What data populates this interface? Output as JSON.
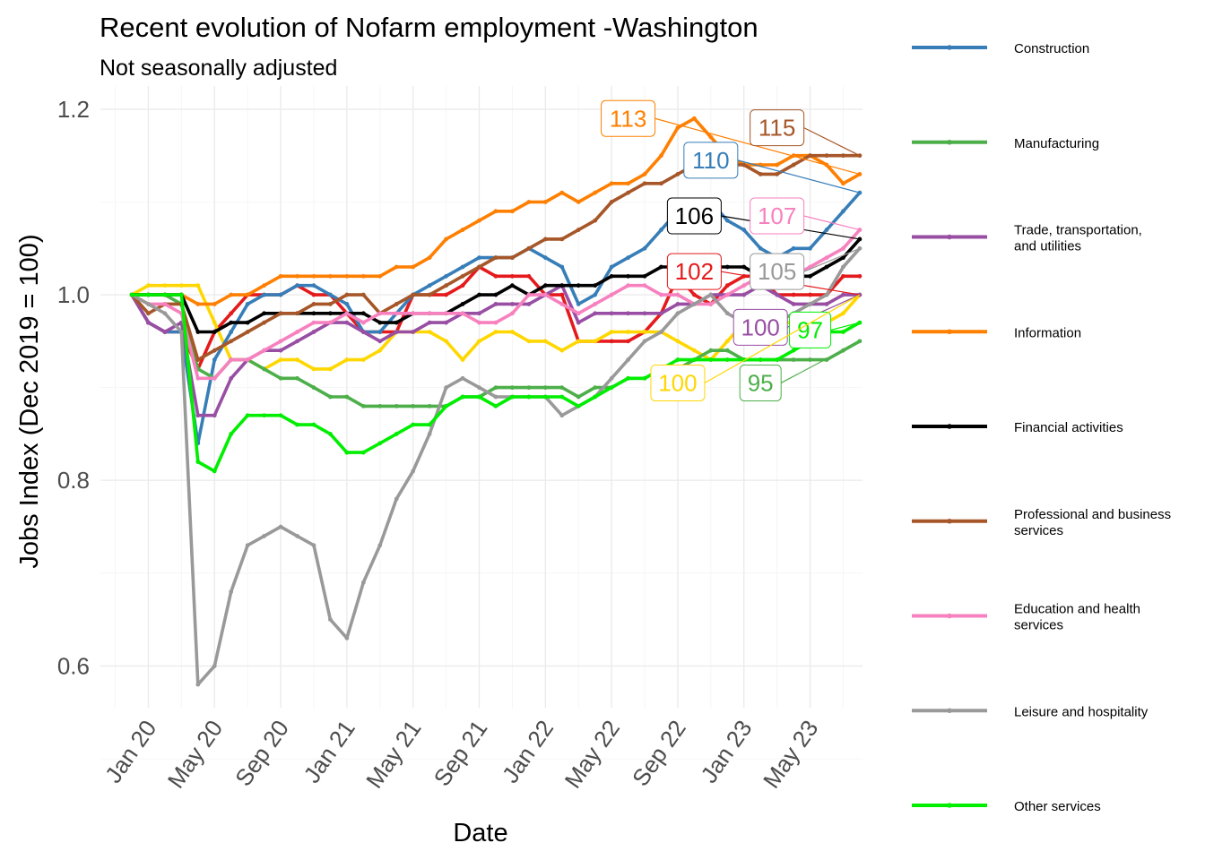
{
  "chart_data": {
    "type": "line",
    "title": "Recent evolution of Nofarm employment -Washington",
    "subtitle": "Not seasonally adjusted",
    "xlabel": "Date",
    "ylabel": "Jobs Index (Dec 2019 = 100)",
    "ylim": [
      0.555,
      1.225
    ],
    "yticks": [
      0.6,
      0.8,
      1.0,
      1.2
    ],
    "ytick_labels": [
      "0.6",
      "0.8",
      "1.0",
      "1.2"
    ],
    "xticks": [
      "2020-01",
      "2020-05",
      "2020-09",
      "2021-01",
      "2021-05",
      "2021-09",
      "2022-01",
      "2022-05",
      "2022-09",
      "2023-01",
      "2023-05"
    ],
    "xtick_labels": [
      "Jan 20",
      "May 20",
      "Sep 20",
      "Jan 21",
      "May 21",
      "Sep 21",
      "Jan 22",
      "May 22",
      "Sep 22",
      "Jan 23",
      "May 23"
    ],
    "x_start": "2019-12",
    "x_end": "2023-06",
    "grid": true,
    "legend_position": "right",
    "series": [
      {
        "name": "Construction",
        "color": "#377eb8",
        "values": [
          1.0,
          0.97,
          0.96,
          0.96,
          0.84,
          0.93,
          0.96,
          0.99,
          1.0,
          1.0,
          1.01,
          1.01,
          1.0,
          0.99,
          0.96,
          0.96,
          0.98,
          1.0,
          1.01,
          1.02,
          1.03,
          1.04,
          1.04,
          1.04,
          1.05,
          1.04,
          1.03,
          0.99,
          1.0,
          1.03,
          1.04,
          1.05,
          1.07,
          1.09,
          1.1,
          1.1,
          1.08,
          1.07,
          1.05,
          1.04,
          1.05,
          1.05,
          1.07,
          1.09,
          1.11
        ],
        "label": "110"
      },
      {
        "name": "Manufacturing",
        "color": "#4daf4a",
        "values": [
          1.0,
          1.0,
          1.0,
          0.99,
          0.92,
          0.91,
          0.93,
          0.93,
          0.92,
          0.91,
          0.91,
          0.9,
          0.89,
          0.89,
          0.88,
          0.88,
          0.88,
          0.88,
          0.88,
          0.88,
          0.89,
          0.89,
          0.9,
          0.9,
          0.9,
          0.9,
          0.9,
          0.89,
          0.9,
          0.9,
          0.91,
          0.91,
          0.92,
          0.92,
          0.93,
          0.94,
          0.94,
          0.93,
          0.93,
          0.93,
          0.93,
          0.93,
          0.93,
          0.94,
          0.95
        ],
        "label": "95"
      },
      {
        "name": "Trade, transportation,\nand utilities",
        "color": "#984ea3",
        "values": [
          1.0,
          0.97,
          0.96,
          0.97,
          0.87,
          0.87,
          0.91,
          0.93,
          0.94,
          0.94,
          0.95,
          0.96,
          0.97,
          0.97,
          0.96,
          0.95,
          0.96,
          0.96,
          0.97,
          0.97,
          0.98,
          0.98,
          0.99,
          0.99,
          0.99,
          1.0,
          1.01,
          0.97,
          0.98,
          0.98,
          0.98,
          0.98,
          0.98,
          0.99,
          0.99,
          1.0,
          1.0,
          1.0,
          1.01,
          1.0,
          0.99,
          0.99,
          0.99,
          1.0,
          1.0
        ],
        "label": "100"
      },
      {
        "name": "Information",
        "color": "#ff7f00",
        "values": [
          1.0,
          1.0,
          1.0,
          1.0,
          0.99,
          0.99,
          1.0,
          1.0,
          1.01,
          1.02,
          1.02,
          1.02,
          1.02,
          1.02,
          1.02,
          1.02,
          1.03,
          1.03,
          1.04,
          1.06,
          1.07,
          1.08,
          1.09,
          1.09,
          1.1,
          1.1,
          1.11,
          1.1,
          1.11,
          1.12,
          1.12,
          1.13,
          1.15,
          1.18,
          1.19,
          1.17,
          1.15,
          1.14,
          1.14,
          1.14,
          1.15,
          1.15,
          1.14,
          1.12,
          1.13
        ],
        "label": "113"
      },
      {
        "name": "Financial activities",
        "color": "#000000",
        "values": [
          1.0,
          1.0,
          1.0,
          1.0,
          0.96,
          0.96,
          0.97,
          0.97,
          0.98,
          0.98,
          0.98,
          0.98,
          0.98,
          0.98,
          0.98,
          0.97,
          0.97,
          0.98,
          0.98,
          0.98,
          0.99,
          1.0,
          1.0,
          1.01,
          1.0,
          1.01,
          1.01,
          1.01,
          1.01,
          1.02,
          1.02,
          1.02,
          1.03,
          1.03,
          1.03,
          1.03,
          1.03,
          1.03,
          1.02,
          1.02,
          1.02,
          1.02,
          1.03,
          1.04,
          1.06
        ],
        "label": "106"
      },
      {
        "name": "Professional and business\nservices",
        "color": "#a65628",
        "values": [
          1.0,
          0.98,
          0.99,
          0.99,
          0.93,
          0.94,
          0.95,
          0.96,
          0.97,
          0.98,
          0.98,
          0.99,
          0.99,
          1.0,
          1.0,
          0.98,
          0.99,
          1.0,
          1.0,
          1.01,
          1.02,
          1.03,
          1.04,
          1.04,
          1.05,
          1.06,
          1.06,
          1.07,
          1.08,
          1.1,
          1.11,
          1.12,
          1.12,
          1.13,
          1.14,
          1.15,
          1.14,
          1.14,
          1.13,
          1.13,
          1.14,
          1.15,
          1.15,
          1.15,
          1.15
        ],
        "label": "115"
      },
      {
        "name": "Education and health\nservices",
        "color": "#f781bf",
        "values": [
          1.0,
          0.99,
          0.99,
          0.98,
          0.91,
          0.91,
          0.93,
          0.93,
          0.94,
          0.95,
          0.96,
          0.97,
          0.97,
          0.98,
          0.97,
          0.98,
          0.98,
          0.98,
          0.98,
          0.98,
          0.98,
          0.97,
          0.97,
          0.98,
          1.0,
          1.0,
          0.99,
          0.98,
          0.99,
          1.0,
          1.01,
          1.01,
          1.0,
          1.0,
          0.99,
          0.99,
          1.0,
          1.01,
          1.02,
          1.02,
          1.02,
          1.03,
          1.04,
          1.05,
          1.07
        ],
        "label": "107"
      },
      {
        "name": "Leisure and hospitality",
        "color": "#999999",
        "values": [
          1.0,
          0.99,
          0.98,
          0.96,
          0.58,
          0.6,
          0.68,
          0.73,
          0.74,
          0.75,
          0.74,
          0.73,
          0.65,
          0.63,
          0.69,
          0.73,
          0.78,
          0.81,
          0.85,
          0.9,
          0.91,
          0.9,
          0.89,
          0.89,
          0.89,
          0.89,
          0.87,
          0.88,
          0.89,
          0.91,
          0.93,
          0.95,
          0.96,
          0.98,
          0.99,
          1.0,
          0.98,
          0.97,
          0.96,
          0.97,
          0.98,
          0.99,
          1.0,
          1.03,
          1.05
        ],
        "label": "105"
      },
      {
        "name": "Other services",
        "color": "#00ee00",
        "values": [
          1.0,
          1.0,
          1.0,
          1.0,
          0.82,
          0.81,
          0.85,
          0.87,
          0.87,
          0.87,
          0.86,
          0.86,
          0.85,
          0.83,
          0.83,
          0.84,
          0.85,
          0.86,
          0.86,
          0.88,
          0.89,
          0.89,
          0.88,
          0.89,
          0.89,
          0.89,
          0.89,
          0.88,
          0.89,
          0.9,
          0.91,
          0.91,
          0.92,
          0.93,
          0.93,
          0.93,
          0.93,
          0.93,
          0.93,
          0.93,
          0.94,
          0.95,
          0.96,
          0.96,
          0.97
        ],
        "label": "97"
      }
    ],
    "end_labels": [
      {
        "series": "Information",
        "text": "113",
        "text_color": "#ff7f00",
        "border_color": "#ff7f00",
        "x": "2022-06",
        "y": 1.19
      },
      {
        "series": "Professional and business\nservices",
        "text": "115",
        "text_color": "#a65628",
        "border_color": "#a65628",
        "x": "2023-03",
        "y": 1.18
      },
      {
        "series": "Construction",
        "text": "110",
        "text_color": "#377eb8",
        "border_color": "#377eb8",
        "x": "2022-11",
        "y": 1.145
      },
      {
        "series": "Financial activities",
        "text": "106",
        "text_color": "#000000",
        "border_color": "#000000",
        "x": "2022-10",
        "y": 1.085
      },
      {
        "series": "Education and health\nservices",
        "text": "107",
        "text_color": "#f781bf",
        "border_color": "#f781bf",
        "x": "2023-03",
        "y": 1.085
      },
      {
        "series": "Trade, transportation,\nand utilities",
        "text": "102",
        "text_color": "#e41a1c",
        "border_color": "#e41a1c",
        "x": "2022-10",
        "y": 1.025
      },
      {
        "series": "Leisure and hospitality",
        "text": "105",
        "text_color": "#999999",
        "border_color": "#999999",
        "x": "2023-03",
        "y": 1.025
      },
      {
        "series": "Trade, transportation,\nand utilities",
        "text": "100",
        "text_color": "#984ea3",
        "border_color": "#984ea3",
        "x": "2023-02",
        "y": 0.965
      },
      {
        "series": "Other services",
        "text": "97",
        "text_color": "#00ee00",
        "border_color": "#00ee00",
        "x": "2023-05",
        "y": 0.962
      },
      {
        "series": "Trade, transportation,\nand utilities",
        "text": "100",
        "text_color": "#ffd700",
        "border_color": "#ffd700",
        "x": "2022-09",
        "y": 0.905
      },
      {
        "series": "Manufacturing",
        "text": "95",
        "text_color": "#4daf4a",
        "border_color": "#4daf4a",
        "x": "2023-02",
        "y": 0.905
      }
    ],
    "unlabeled_lines": [
      {
        "color": "#e41a1c",
        "values": [
          1.0,
          0.97,
          0.96,
          0.96,
          0.92,
          0.96,
          0.98,
          1.0,
          1.0,
          1.0,
          1.01,
          1.0,
          1.0,
          0.98,
          0.96,
          0.96,
          0.96,
          1.0,
          1.0,
          1.0,
          1.01,
          1.03,
          1.02,
          1.02,
          1.02,
          1.0,
          1.0,
          0.95,
          0.95,
          0.95,
          0.95,
          0.96,
          0.98,
          1.02,
          1.0,
          0.99,
          1.01,
          1.02,
          1.02,
          1.0,
          1.0,
          1.0,
          1.0,
          1.02,
          1.02
        ]
      },
      {
        "color": "#ffd700",
        "values": [
          1.0,
          1.01,
          1.01,
          1.01,
          1.01,
          0.97,
          0.93,
          0.93,
          0.92,
          0.93,
          0.93,
          0.92,
          0.92,
          0.93,
          0.93,
          0.94,
          0.96,
          0.96,
          0.96,
          0.95,
          0.93,
          0.95,
          0.96,
          0.96,
          0.95,
          0.95,
          0.94,
          0.95,
          0.95,
          0.96,
          0.96,
          0.96,
          0.96,
          0.95,
          0.94,
          0.93,
          0.95,
          0.97,
          0.97,
          0.97,
          0.97,
          0.96,
          0.97,
          0.98,
          1.0
        ]
      }
    ]
  },
  "legend": {
    "items": [
      {
        "label_lines": [
          "Construction"
        ],
        "color": "#377eb8"
      },
      {
        "label_lines": [
          "Manufacturing"
        ],
        "color": "#4daf4a"
      },
      {
        "label_lines": [
          "Trade, transportation,",
          "and utilities"
        ],
        "color": "#984ea3"
      },
      {
        "label_lines": [
          "Information"
        ],
        "color": "#ff7f00"
      },
      {
        "label_lines": [
          "Financial activities"
        ],
        "color": "#000000"
      },
      {
        "label_lines": [
          "Professional and business",
          "services"
        ],
        "color": "#a65628"
      },
      {
        "label_lines": [
          "Education and health",
          "services"
        ],
        "color": "#f781bf"
      },
      {
        "label_lines": [
          "Leisure and hospitality"
        ],
        "color": "#999999"
      },
      {
        "label_lines": [
          "Other services"
        ],
        "color": "#00ee00"
      }
    ]
  }
}
